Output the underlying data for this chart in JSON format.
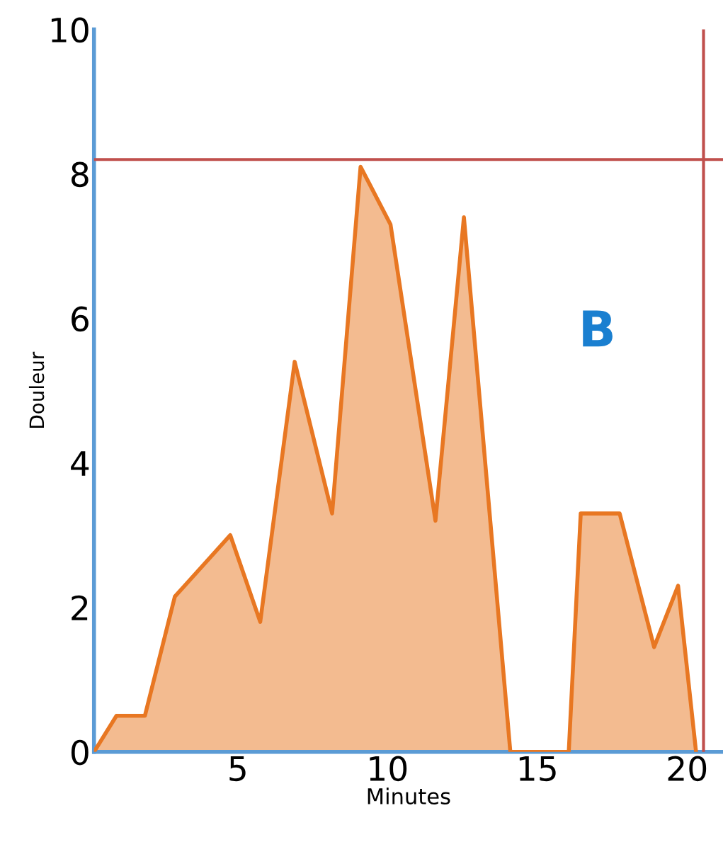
{
  "chart_data": {
    "type": "area",
    "xlabel": "Minutes",
    "ylabel": "Douleur",
    "x": [
      0.2,
      0.95,
      1.9,
      2.9,
      4.75,
      5.75,
      6.9,
      8.15,
      9.1,
      10.1,
      11.6,
      12.55,
      14.1,
      16.05,
      16.45,
      17.75,
      18.9,
      19.7,
      20.3
    ],
    "series": [
      {
        "color": "#e87722",
        "values": [
          0,
          0.5,
          0.5,
          2.15,
          3.0,
          1.8,
          5.4,
          3.3,
          8.1,
          7.3,
          3.2,
          7.4,
          0,
          0,
          3.3,
          3.3,
          1.45,
          2.3,
          0
        ]
      }
    ],
    "xlim": [
      0.2,
      21.2
    ],
    "ylim": [
      0,
      10
    ],
    "xticks": [
      5,
      10,
      15,
      20
    ],
    "yticks": [
      0,
      2,
      4,
      6,
      8,
      10
    ],
    "grid": false,
    "ref_lines": [
      {
        "axis": "y",
        "value": 8.2,
        "color": "#c0504d"
      },
      {
        "axis": "x",
        "value": 20.55,
        "color": "#c0504d"
      }
    ],
    "annotations": [
      "B"
    ]
  }
}
